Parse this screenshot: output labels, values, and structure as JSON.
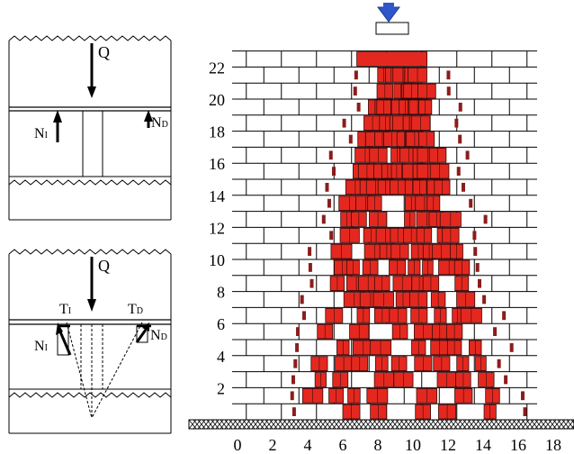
{
  "detail_top": {
    "load_label": "Q",
    "left_normal_label": "N",
    "left_normal_sub": "I",
    "right_normal_label": "N",
    "right_normal_sub": "D"
  },
  "detail_bottom": {
    "load_label": "Q",
    "left_shear_label": "T",
    "left_shear_sub": "I",
    "right_shear_label": "T",
    "right_shear_sub": "D",
    "left_normal_label": "N",
    "left_normal_sub": "I",
    "right_normal_label": "N",
    "right_normal_sub": "D"
  },
  "wall": {
    "load_marker_color": "#2f57c9",
    "crushed_block_color": "#e5281f",
    "crack_color": "#8c1c1c",
    "y_tick_labels": [
      "2",
      "4",
      "6",
      "8",
      "10",
      "12",
      "14",
      "16",
      "18",
      "20",
      "22"
    ],
    "x_tick_labels": [
      "0",
      "2",
      "4",
      "6",
      "8",
      "10",
      "12",
      "14",
      "16",
      "18"
    ]
  }
}
